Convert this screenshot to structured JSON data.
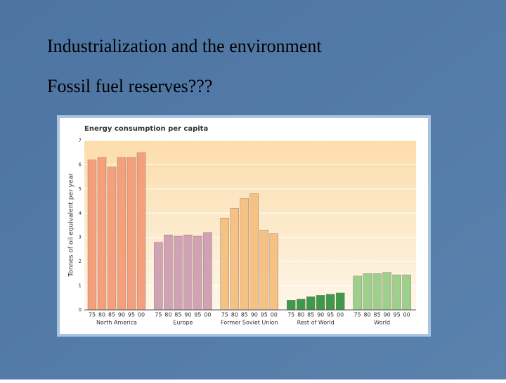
{
  "slide": {
    "title": "Industrialization and the environment",
    "subtitle": "Fossil fuel reserves???"
  },
  "chart_data": {
    "type": "bar",
    "title": "Energy consumption per capita",
    "ylabel": "Tonnes of oil equivalent per year",
    "categories": [
      "75",
      "80",
      "85",
      "90",
      "95",
      "00"
    ],
    "series": [
      {
        "name": "North America",
        "color": "#f4a07c",
        "values": [
          6.2,
          6.3,
          5.9,
          6.3,
          6.3,
          6.5
        ]
      },
      {
        "name": "Europe",
        "color": "#cfa3b4",
        "values": [
          2.8,
          3.1,
          3.05,
          3.1,
          3.05,
          3.2
        ]
      },
      {
        "name": "Former Soviet Union",
        "color": "#f6c283",
        "values": [
          3.8,
          4.2,
          4.6,
          4.8,
          3.3,
          3.15
        ]
      },
      {
        "name": "Rest of World",
        "color": "#3e9a4a",
        "values": [
          0.4,
          0.45,
          0.55,
          0.6,
          0.65,
          0.7
        ]
      },
      {
        "name": "World",
        "color": "#9dd08c",
        "values": [
          1.4,
          1.5,
          1.5,
          1.55,
          1.45,
          1.45
        ]
      }
    ],
    "ylim": [
      0,
      7
    ],
    "yticks": [
      0,
      1,
      2,
      3,
      4,
      5,
      6,
      7
    ],
    "grid": true
  }
}
